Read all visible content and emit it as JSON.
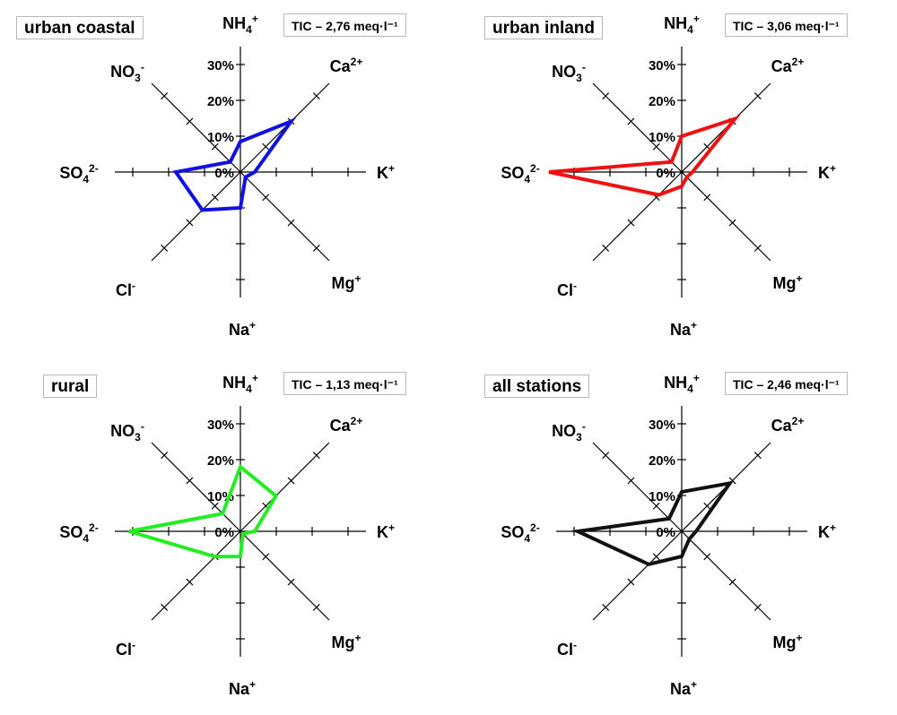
{
  "chart_data": [
    {
      "type": "radar",
      "title": "urban coastal",
      "tic": "TIC – 2,76 meq·l⁻¹",
      "axes": [
        "NH4+",
        "Ca2+",
        "K+",
        "Mg+",
        "Na+",
        "Cl-",
        "SO42-",
        "NO3-"
      ],
      "rlim": [
        0,
        35
      ],
      "tick_labels": [
        "0%",
        "10%",
        "20%",
        "30%"
      ],
      "color": "#1010e0",
      "values": [
        8.5,
        20,
        4,
        2,
        10,
        15,
        18,
        4
      ]
    },
    {
      "type": "radar",
      "title": "urban inland",
      "tic": "TIC – 3,06 meq·l⁻¹",
      "axes": [
        "NH4+",
        "Ca2+",
        "K+",
        "Mg+",
        "Na+",
        "Cl-",
        "SO42-",
        "NO3-"
      ],
      "rlim": [
        0,
        35
      ],
      "tick_labels": [
        "0%",
        "10%",
        "20%",
        "30%"
      ],
      "color": "#ee1111",
      "values": [
        10,
        21,
        3,
        2,
        4,
        9,
        37,
        4
      ]
    },
    {
      "type": "radar",
      "title": "rural",
      "tic": "TIC – 1,13 meq·l⁻¹",
      "axes": [
        "NH4+",
        "Ca2+",
        "K+",
        "Mg+",
        "Na+",
        "Cl-",
        "SO42-",
        "NO3-"
      ],
      "rlim": [
        0,
        35
      ],
      "tick_labels": [
        "0%",
        "10%",
        "20%",
        "30%"
      ],
      "color": "#22ee22",
      "values": [
        18,
        14,
        4,
        1,
        7,
        10,
        31,
        7
      ]
    },
    {
      "type": "radar",
      "title": "all stations",
      "tic": "TIC – 2,46 meq·l⁻¹",
      "axes": [
        "NH4+",
        "Ca2+",
        "K+",
        "Mg+",
        "Na+",
        "Cl-",
        "SO42-",
        "NO3-"
      ],
      "rlim": [
        0,
        35
      ],
      "tick_labels": [
        "0%",
        "10%",
        "20%",
        "30%"
      ],
      "color": "#111111",
      "values": [
        11,
        19,
        4,
        3,
        7,
        13,
        29,
        5
      ]
    }
  ]
}
